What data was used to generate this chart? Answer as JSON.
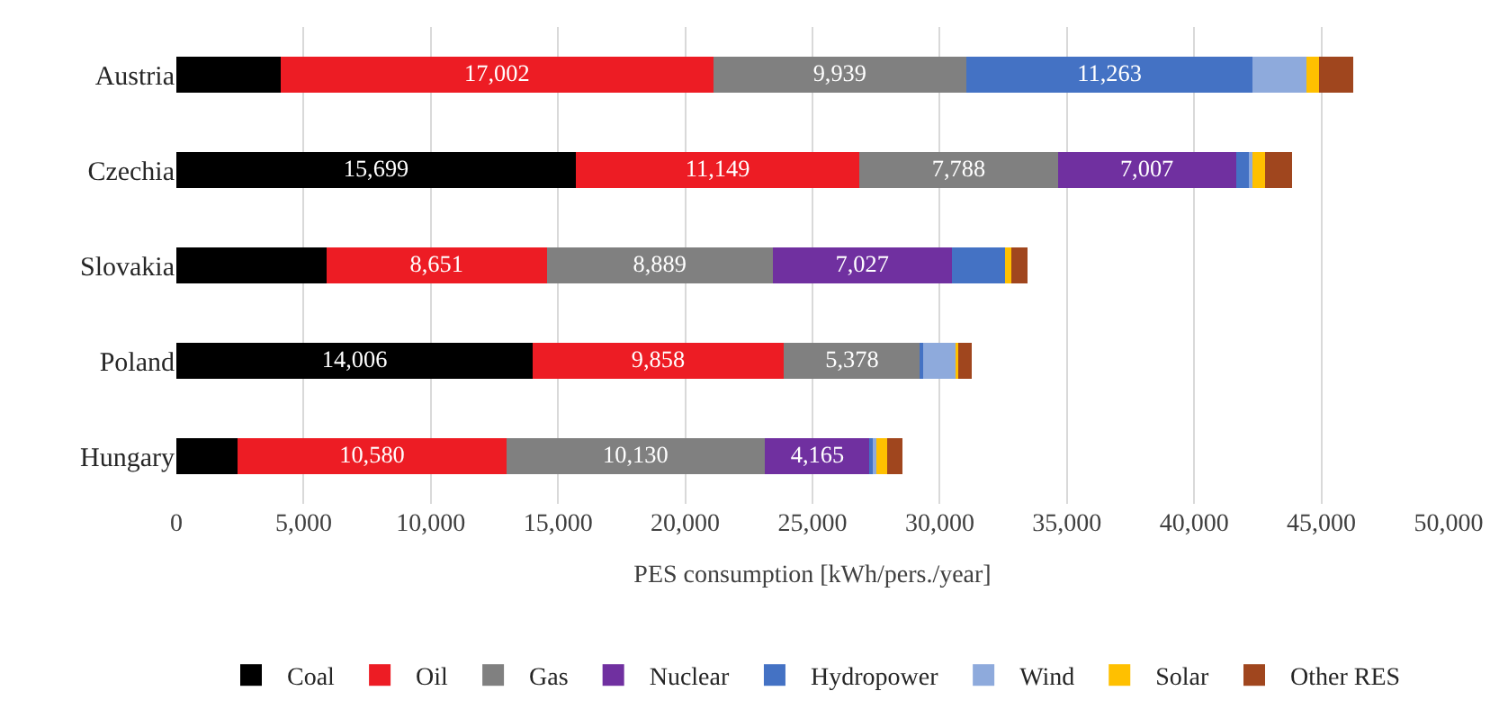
{
  "chart_data": {
    "type": "bar",
    "orientation": "horizontal",
    "stacked": true,
    "xlabel": "PES consumption [kWh/pers./year]",
    "categories": [
      "Austria",
      "Czechia",
      "Slovakia",
      "Poland",
      "Hungary"
    ],
    "series": [
      {
        "name": "Coal",
        "color": "#000000",
        "values": [
          4100,
          15699,
          5900,
          14006,
          2400
        ],
        "value_labels": [
          null,
          "15,699",
          null,
          "14,006",
          null
        ]
      },
      {
        "name": "Oil",
        "color": "#ed1c24",
        "values": [
          17002,
          11149,
          8651,
          9858,
          10580
        ],
        "value_labels": [
          "17,002",
          "11,149",
          "8,651",
          "9,858",
          "10,580"
        ]
      },
      {
        "name": "Gas",
        "color": "#808080",
        "values": [
          9939,
          7788,
          8889,
          5378,
          10130
        ],
        "value_labels": [
          "9,939",
          "7,788",
          "8,889",
          "5,378",
          "10,130"
        ]
      },
      {
        "name": "Nuclear",
        "color": "#7030a0",
        "values": [
          0,
          7007,
          7027,
          0,
          4165
        ],
        "value_labels": [
          null,
          "7,007",
          "7,027",
          null,
          "4,165"
        ]
      },
      {
        "name": "Hydropower",
        "color": "#4472c4",
        "values": [
          11263,
          500,
          2100,
          100,
          100
        ],
        "value_labels": [
          "11,263",
          null,
          null,
          null,
          null
        ]
      },
      {
        "name": "Wind",
        "color": "#8eaadc",
        "values": [
          2100,
          150,
          null,
          1300,
          150
        ]
      },
      {
        "name": "Solar",
        "color": "#ffc000",
        "values": [
          500,
          500,
          250,
          100,
          400
        ]
      },
      {
        "name": "Other RES",
        "color": "#a0461e",
        "values": [
          1350,
          1050,
          650,
          500,
          600
        ]
      }
    ],
    "xlim": [
      0,
      50000
    ],
    "xticks": [
      {
        "value": 0,
        "label": "0"
      },
      {
        "value": 5000,
        "label": "5,000"
      },
      {
        "value": 10000,
        "label": "10,000"
      },
      {
        "value": 15000,
        "label": "15,000"
      },
      {
        "value": 20000,
        "label": "20,000"
      },
      {
        "value": 25000,
        "label": "25,000"
      },
      {
        "value": 30000,
        "label": "30,000"
      },
      {
        "value": 35000,
        "label": "35,000"
      },
      {
        "value": 40000,
        "label": "40,000"
      },
      {
        "value": 45000,
        "label": "45,000"
      },
      {
        "value": 50000,
        "label": "50,000"
      }
    ],
    "grid": "x",
    "legend": "bottom"
  }
}
